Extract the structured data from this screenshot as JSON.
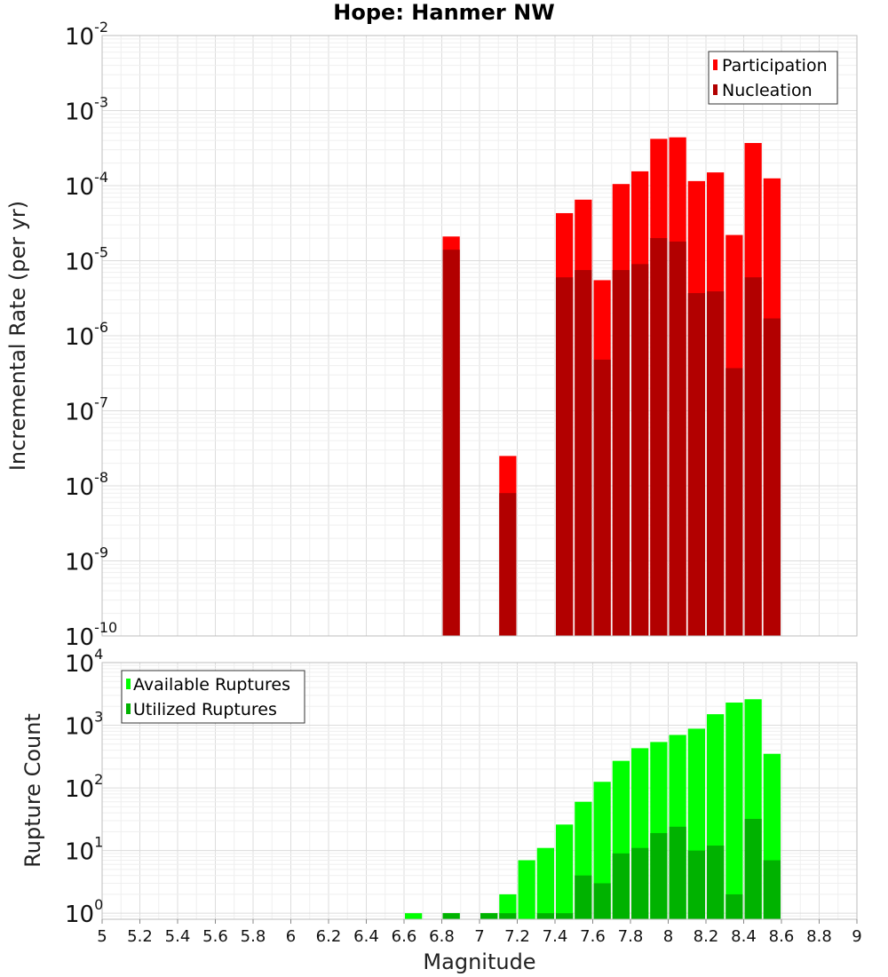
{
  "chart_data": [
    {
      "type": "bar",
      "title": "Hope: Hanmer NW",
      "xlabel": "Magnitude",
      "ylabel": "Incremental Rate (per yr)",
      "yscale": "log",
      "ylim": [
        1e-10,
        0.01
      ],
      "xlim": [
        5.0,
        9.0
      ],
      "bin_width": 0.1,
      "legend_position": "top-right",
      "y_tick_labels": [
        "10^-10",
        "10^-9",
        "10^-8",
        "10^-7",
        "10^-6",
        "10^-5",
        "10^-4",
        "10^-3",
        "10^-2"
      ],
      "series": [
        {
          "name": "Participation",
          "color": "#ff0000",
          "x": [
            6.85,
            7.15,
            7.45,
            7.55,
            7.65,
            7.75,
            7.85,
            7.95,
            8.05,
            8.15,
            8.25,
            8.35,
            8.45,
            8.55
          ],
          "values": [
            2.1e-05,
            2.5e-08,
            4.3e-05,
            6.5e-05,
            5.5e-06,
            0.000105,
            0.000155,
            0.00042,
            0.00044,
            0.000115,
            0.00015,
            2.2e-05,
            0.00037,
            0.000125
          ]
        },
        {
          "name": "Nucleation",
          "color": "#b20000",
          "x": [
            6.85,
            7.15,
            7.45,
            7.55,
            7.65,
            7.75,
            7.85,
            7.95,
            8.05,
            8.15,
            8.25,
            8.35,
            8.45,
            8.55
          ],
          "values": [
            1.4e-05,
            8e-09,
            6e-06,
            7.5e-06,
            4.8e-07,
            7.5e-06,
            9e-06,
            2e-05,
            1.8e-05,
            3.7e-06,
            3.9e-06,
            3.7e-07,
            6e-06,
            1.7e-06
          ]
        }
      ]
    },
    {
      "type": "bar",
      "xlabel": "Magnitude",
      "ylabel": "Rupture Count",
      "yscale": "log",
      "ylim": [
        0.8,
        10000
      ],
      "xlim": [
        5.0,
        9.0
      ],
      "bin_width": 0.1,
      "legend_position": "top-left",
      "y_tick_labels": [
        "10^0",
        "10^1",
        "10^2",
        "10^3",
        "10^4"
      ],
      "x_tick_labels": [
        "5",
        "5.2",
        "5.4",
        "5.6",
        "5.8",
        "6",
        "6.2",
        "6.4",
        "6.6",
        "6.8",
        "7",
        "7.2",
        "7.4",
        "7.6",
        "7.8",
        "8",
        "8.2",
        "8.4",
        "8.6",
        "8.8",
        "9"
      ],
      "series": [
        {
          "name": "Available Ruptures",
          "color": "#00ff00",
          "x": [
            6.65,
            6.85,
            7.05,
            7.15,
            7.25,
            7.35,
            7.45,
            7.55,
            7.65,
            7.75,
            7.85,
            7.95,
            8.05,
            8.15,
            8.25,
            8.35,
            8.45,
            8.55
          ],
          "values": [
            1,
            1,
            1,
            2,
            7,
            11,
            26,
            60,
            125,
            270,
            430,
            540,
            700,
            880,
            1500,
            2300,
            2600,
            350
          ]
        },
        {
          "name": "Utilized Ruptures",
          "color": "#00b200",
          "x": [
            6.85,
            7.05,
            7.15,
            7.35,
            7.45,
            7.55,
            7.65,
            7.75,
            7.85,
            7.95,
            8.05,
            8.15,
            8.25,
            8.35,
            8.45,
            8.55
          ],
          "values": [
            1,
            1,
            1,
            1,
            1,
            4,
            3,
            9,
            11,
            19,
            24,
            10,
            12,
            2,
            32,
            7
          ]
        }
      ]
    }
  ]
}
